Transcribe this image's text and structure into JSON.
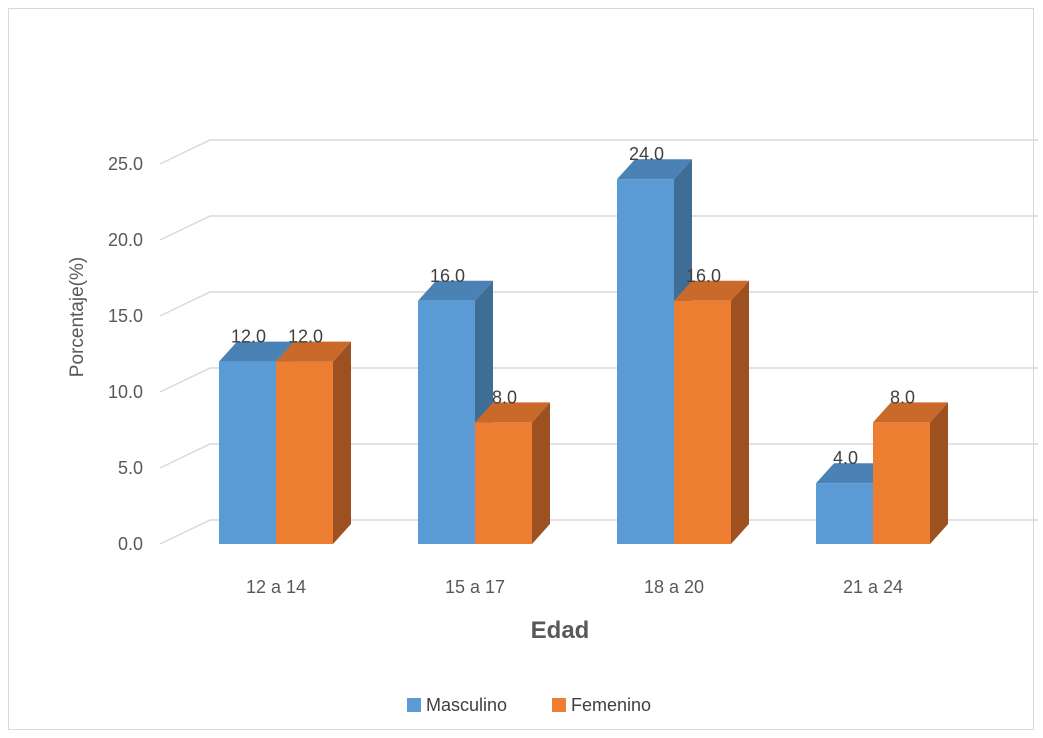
{
  "chart_data": {
    "type": "bar",
    "categories": [
      "12 a 14",
      "15 a 17",
      "18 a 20",
      "21 a 24"
    ],
    "series": [
      {
        "name": "Masculino",
        "values": [
          12.0,
          16.0,
          24.0,
          4.0
        ]
      },
      {
        "name": "Femenino",
        "values": [
          12.0,
          8.0,
          16.0,
          8.0
        ]
      }
    ],
    "data_labels": [
      [
        "12.0",
        "16.0",
        "24.0",
        "4.0"
      ],
      [
        "12.0",
        "8.0",
        "16.0",
        "8.0"
      ]
    ],
    "ylabel": "Porcentaje(%)",
    "xlabel": "Edad",
    "ylim": [
      0,
      25
    ],
    "yticks": [
      "0.0",
      "5.0",
      "10.0",
      "15.0",
      "20.0",
      "25.0"
    ],
    "ytick_values": [
      0,
      5,
      10,
      15,
      20,
      25
    ],
    "grid": true,
    "legend_position": "bottom",
    "style": "3d-clustered-column",
    "colors": {
      "Masculino": {
        "front": "#5b9bd5",
        "top": "#4a82b6",
        "side": "#3e6d96"
      },
      "Femenino": {
        "front": "#ed7d31",
        "top": "#c9692a",
        "side": "#9e5120"
      },
      "grid": "#d9d9d9"
    }
  }
}
